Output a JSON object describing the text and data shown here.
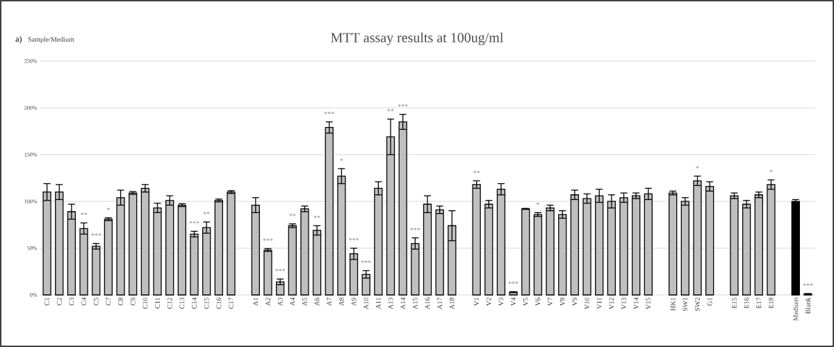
{
  "chart_data": {
    "type": "bar",
    "title": "MTT assay results at 100ug/ml",
    "ylabel": "Sample/Medium",
    "categories": [
      "C1",
      "C2",
      "C3",
      "C4",
      "C5",
      "C7",
      "C8",
      "C9",
      "C10",
      "C11",
      "C12",
      "C13",
      "C14",
      "C15",
      "C16",
      "C17",
      null,
      "A1",
      "A2",
      "A3",
      "A4",
      "A5",
      "A6",
      "A7",
      "A8",
      "A9",
      "A10",
      "A11",
      "A13",
      "A14",
      "A15",
      "A16",
      "A17",
      "A18",
      null,
      "V1",
      "V2",
      "V3",
      "V4",
      "V5",
      "V6",
      "V7",
      "V8",
      "V9",
      "V10",
      "V11",
      "V12",
      "V13",
      "V14",
      "V15",
      null,
      "HK1",
      "SW1",
      "SW2",
      "G1",
      null,
      "E15",
      "E16",
      "E17",
      "E18",
      null,
      "Medium",
      "Blank"
    ],
    "values": [
      110,
      110,
      89,
      71,
      52,
      81,
      104,
      109,
      114,
      93,
      101,
      96,
      65,
      72,
      101,
      110,
      null,
      96,
      48,
      14,
      74,
      92,
      69,
      179,
      127,
      44,
      22,
      114,
      169,
      185,
      55,
      97,
      91,
      74,
      null,
      118,
      97,
      113,
      3,
      92,
      86,
      93,
      86,
      107,
      103,
      106,
      100,
      104,
      106,
      108,
      null,
      109,
      100,
      122,
      116,
      null,
      106,
      97,
      107,
      118,
      null,
      100,
      1
    ],
    "errors": [
      9,
      8,
      8,
      6,
      3,
      1.5,
      8,
      1.5,
      4,
      5,
      5,
      1.5,
      3,
      6,
      1.5,
      1.5,
      null,
      8,
      1.5,
      3,
      2,
      3,
      5,
      6,
      8,
      6,
      4,
      7,
      19,
      8,
      6,
      9,
      4,
      16,
      null,
      4,
      4,
      6,
      0.5,
      0.5,
      2,
      3,
      4,
      5,
      5,
      7,
      7,
      5,
      3,
      6,
      null,
      2,
      4,
      5,
      5,
      null,
      3,
      4,
      3,
      5,
      null,
      2,
      0.5
    ],
    "colors": [
      "#bfbfbf",
      "#bfbfbf",
      "#bfbfbf",
      "#bfbfbf",
      "#bfbfbf",
      "#bfbfbf",
      "#bfbfbf",
      "#bfbfbf",
      "#bfbfbf",
      "#bfbfbf",
      "#bfbfbf",
      "#bfbfbf",
      "#bfbfbf",
      "#bfbfbf",
      "#bfbfbf",
      "#bfbfbf",
      null,
      "#bfbfbf",
      "#bfbfbf",
      "#bfbfbf",
      "#bfbfbf",
      "#bfbfbf",
      "#bfbfbf",
      "#bfbfbf",
      "#bfbfbf",
      "#bfbfbf",
      "#bfbfbf",
      "#bfbfbf",
      "#bfbfbf",
      "#bfbfbf",
      "#bfbfbf",
      "#bfbfbf",
      "#bfbfbf",
      "#bfbfbf",
      null,
      "#bfbfbf",
      "#bfbfbf",
      "#bfbfbf",
      "#bfbfbf",
      "#bfbfbf",
      "#bfbfbf",
      "#bfbfbf",
      "#bfbfbf",
      "#bfbfbf",
      "#bfbfbf",
      "#bfbfbf",
      "#bfbfbf",
      "#bfbfbf",
      "#bfbfbf",
      "#bfbfbf",
      null,
      "#bfbfbf",
      "#bfbfbf",
      "#bfbfbf",
      "#bfbfbf",
      null,
      "#bfbfbf",
      "#bfbfbf",
      "#bfbfbf",
      "#bfbfbf",
      null,
      "#000000",
      "#bfbfbf"
    ],
    "ylim": [
      0,
      250
    ],
    "yticks": [
      {
        "value": 0,
        "label": "0%"
      },
      {
        "value": 50,
        "label": "50%"
      },
      {
        "value": 100,
        "label": "100%"
      },
      {
        "value": 150,
        "label": "150%"
      },
      {
        "value": 200,
        "label": "200%"
      },
      {
        "value": 250,
        "label": "250%"
      }
    ],
    "grid": "y",
    "annotations": [
      "a)",
      {
        "text": "**",
        "x": "C4",
        "y": 77
      },
      {
        "text": "***",
        "x": "C5",
        "y": 55
      },
      {
        "text": "*",
        "x": "C7",
        "y": 82.5
      },
      {
        "text": "***",
        "x": "C14",
        "y": 68
      },
      {
        "text": "**",
        "x": "C15",
        "y": 78
      },
      {
        "text": "***",
        "x": "A2",
        "y": 49.5
      },
      {
        "text": "***",
        "x": "A3",
        "y": 17
      },
      {
        "text": "**",
        "x": "A4",
        "y": 76
      },
      {
        "text": "**",
        "x": "A6",
        "y": 74
      },
      {
        "text": "***",
        "x": "A7",
        "y": 185
      },
      {
        "text": "*",
        "x": "A8",
        "y": 135
      },
      {
        "text": "***",
        "x": "A9",
        "y": 50
      },
      {
        "text": "***",
        "x": "A10",
        "y": 26
      },
      {
        "text": "**",
        "x": "A13",
        "y": 188
      },
      {
        "text": "***",
        "x": "A14",
        "y": 193
      },
      {
        "text": "***",
        "x": "A15",
        "y": 61
      },
      {
        "text": "**",
        "x": "V1",
        "y": 122
      },
      {
        "text": "***",
        "x": "V4",
        "y": 3.5
      },
      {
        "text": "*",
        "x": "V6",
        "y": 88
      },
      {
        "text": "*",
        "x": "SW2",
        "y": 127
      },
      {
        "text": "*",
        "x": "E18",
        "y": 123
      },
      {
        "text": "***",
        "x": "Blank",
        "y": 1.5
      }
    ]
  }
}
